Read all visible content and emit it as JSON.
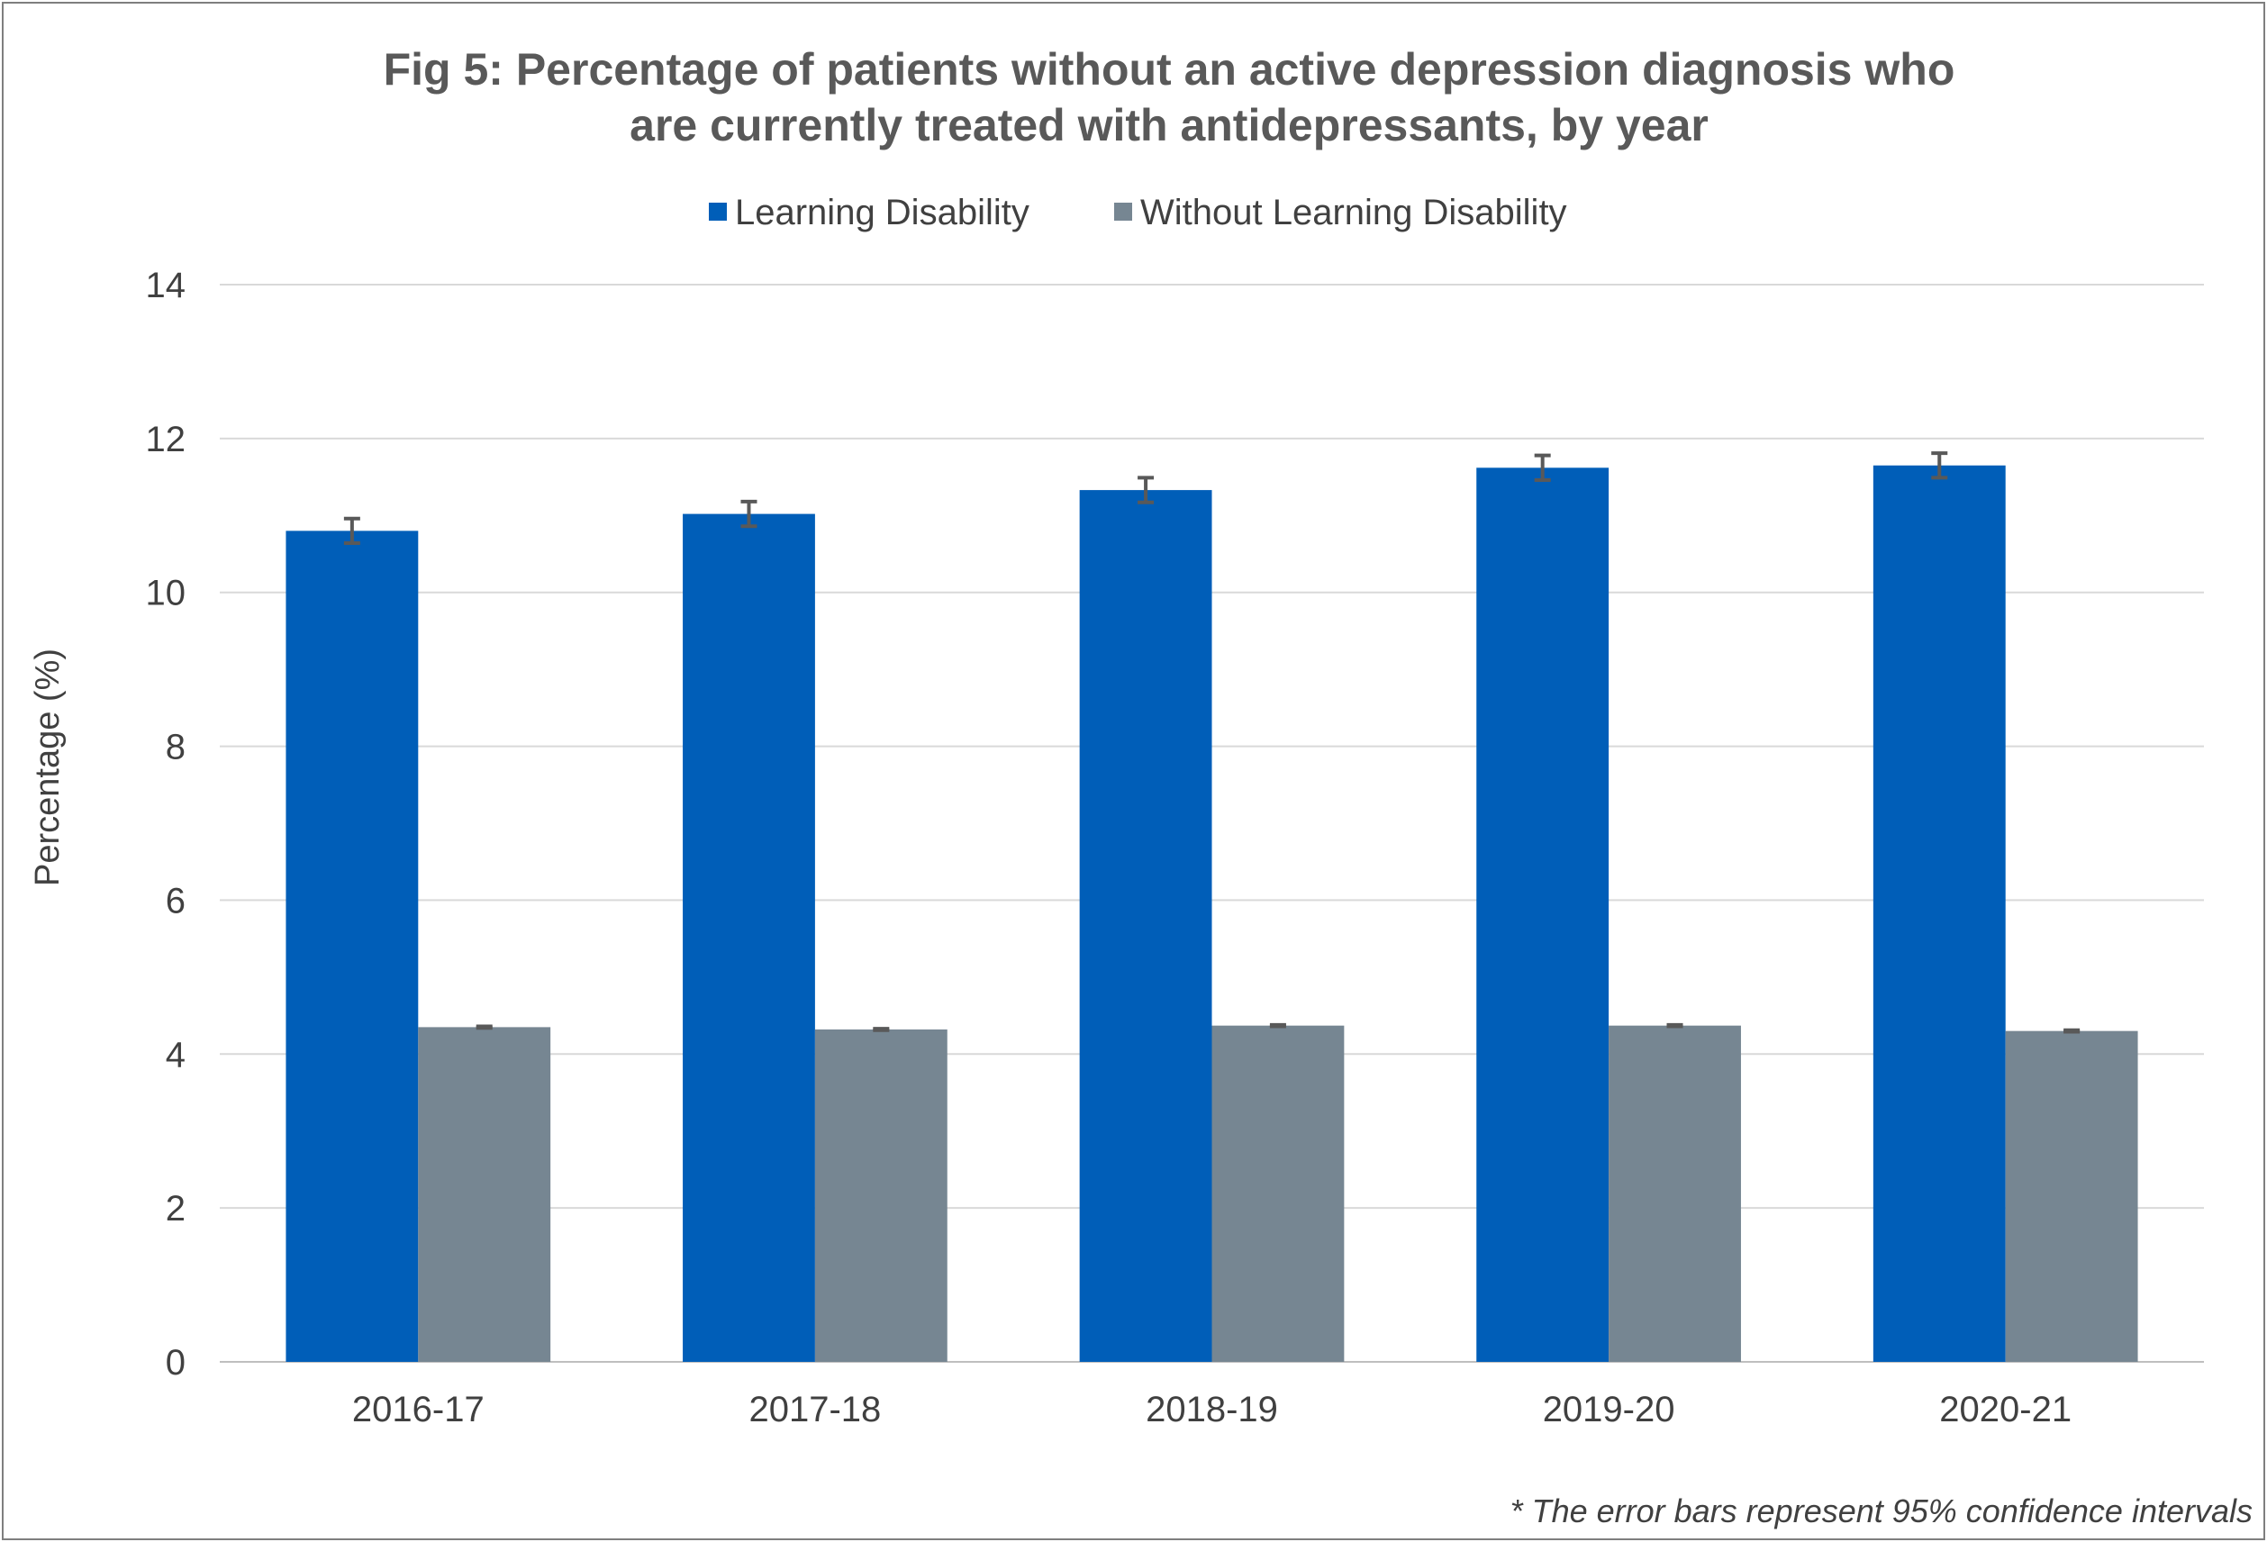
{
  "chart_data": {
    "type": "bar",
    "title_lines": [
      "Fig 5: Percentage of patients without an active depression diagnosis who",
      "are currently treated with antidepressants, by year"
    ],
    "ylabel": "Percentage (%)",
    "xlabel": "",
    "ylim": [
      0,
      14
    ],
    "yticks": [
      0,
      2,
      4,
      6,
      8,
      10,
      12,
      14
    ],
    "y_tick_labels": [
      "0",
      "2",
      "4",
      "6",
      "8",
      "10",
      "12",
      "14"
    ],
    "grid": true,
    "legend_position": "top-center",
    "categories": [
      "2016-17",
      "2017-18",
      "2018-19",
      "2019-20",
      "2020-21"
    ],
    "series": [
      {
        "name": "Learning Disability",
        "color": "#005EB8",
        "values": [
          10.8,
          11.02,
          11.33,
          11.62,
          11.65
        ],
        "ci_lower": [
          10.64,
          10.86,
          11.17,
          11.46,
          11.49
        ],
        "ci_upper": [
          10.96,
          11.18,
          11.49,
          11.78,
          11.81
        ]
      },
      {
        "name": "Without Learning Disability",
        "color": "#768692",
        "values": [
          4.35,
          4.32,
          4.37,
          4.37,
          4.3
        ],
        "ci_lower": [
          4.34,
          4.31,
          4.36,
          4.36,
          4.29
        ],
        "ci_upper": [
          4.36,
          4.33,
          4.38,
          4.38,
          4.31
        ]
      }
    ],
    "errorbar_color": "#595959",
    "footnote": "* The error bars represent 95% confidence intervals"
  }
}
